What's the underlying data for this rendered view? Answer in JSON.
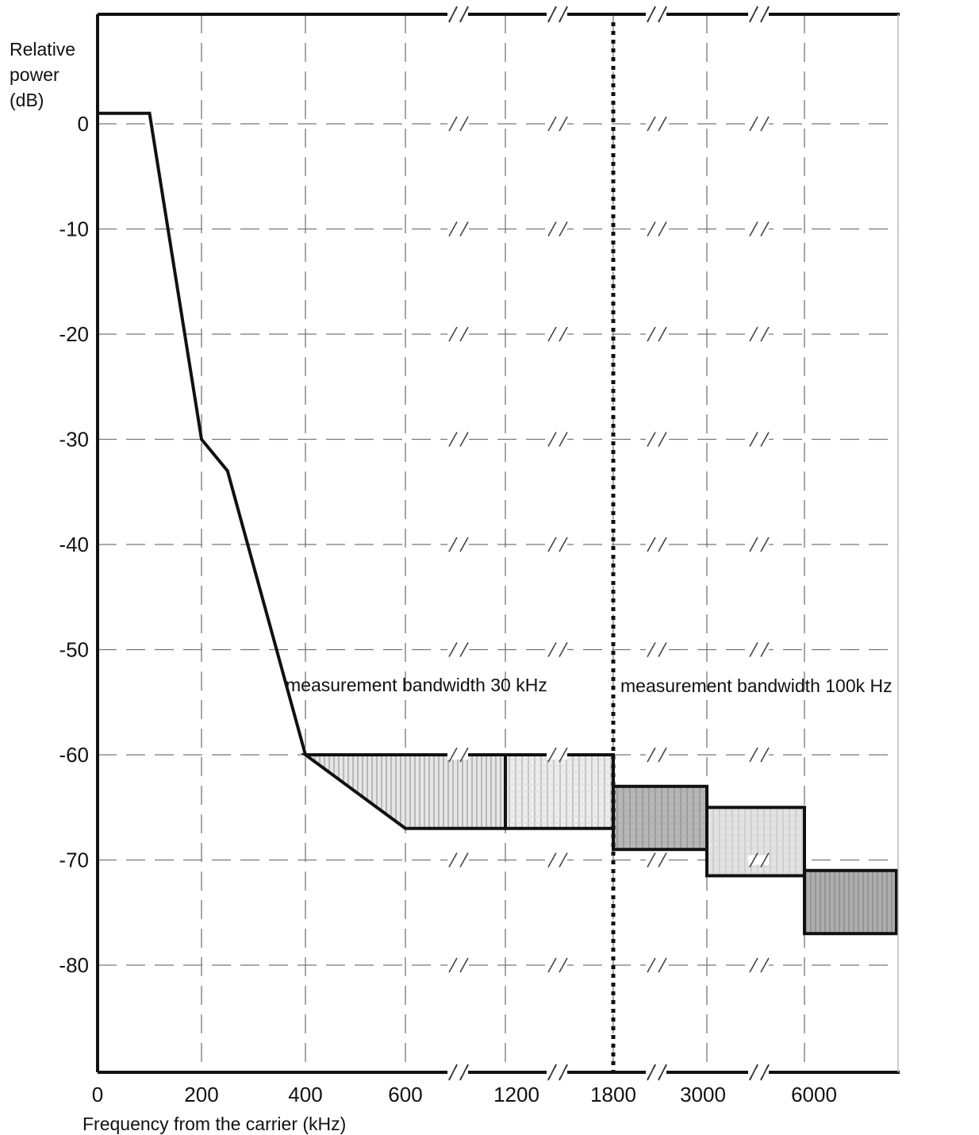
{
  "chart_data": {
    "type": "line",
    "title": "",
    "ylabel": [
      "Relative",
      "power",
      "(dB)"
    ],
    "xlabel": "Frequency from the carrier (kHz)",
    "x_tick_labels": [
      "0",
      "200",
      "400",
      "600",
      "1200",
      "1800",
      "3000",
      "6000"
    ],
    "y_ticks": [
      0,
      -10,
      -20,
      -30,
      -40,
      -50,
      -60,
      -70,
      -80
    ],
    "ylim": [
      -90,
      10
    ],
    "x_scale": "piecewise (axis broken between 600, 1200, 1800, 3000 and 6000 kHz)",
    "grid": true,
    "axis_break_marks": true,
    "spectrum_mask": {
      "name": "",
      "points": [
        [
          0,
          1
        ],
        [
          100,
          1
        ],
        [
          200,
          -30
        ],
        [
          250,
          -33
        ],
        [
          400,
          -60
        ]
      ]
    },
    "shaded_regions": [
      {
        "x_from": 400,
        "x_to": 1200,
        "top_db": -60,
        "bottom_db": -67,
        "bottom_from_x": 600,
        "bottom_start_db": -60
      },
      {
        "x_from": 1200,
        "x_to": 1800,
        "top_db": -60,
        "bottom_db": -67
      },
      {
        "x_from": 1800,
        "x_to": 3000,
        "top_db": -63,
        "bottom_db": -69
      },
      {
        "x_from": 3000,
        "x_to": 6000,
        "top_db": -65,
        "bottom_db": -71.5
      },
      {
        "x_from": 6000,
        "x_to_end": true,
        "top_db": -71,
        "bottom_db": -77
      }
    ],
    "divider_x": 1800,
    "annotations": [
      {
        "text": "measurement bandwidth 30 kHz",
        "position": "left of divider"
      },
      {
        "text": "measurement bandwidth 100k Hz",
        "position": "right of divider"
      }
    ]
  }
}
